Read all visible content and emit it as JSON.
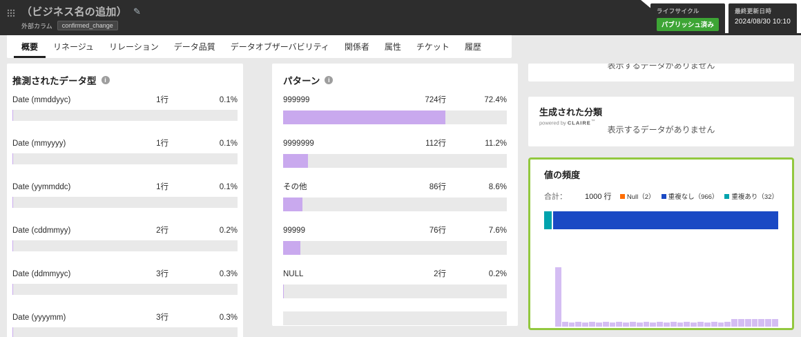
{
  "header": {
    "title": "（ビジネス名の追加）",
    "entity_type": "外部カラム",
    "entity_badge": "confirmed_change",
    "lifecycle": {
      "label": "ライフサイクル",
      "status": "パブリッシュ済み"
    },
    "last_updated": {
      "label": "最終更新日時",
      "value": "2024/08/30 10:10"
    }
  },
  "tabs": [
    {
      "key": "overview",
      "label": "概要",
      "active": true
    },
    {
      "key": "lineage",
      "label": "リネージュ",
      "active": false
    },
    {
      "key": "relation",
      "label": "リレーション",
      "active": false
    },
    {
      "key": "data-quality",
      "label": "データ品質",
      "active": false
    },
    {
      "key": "data-observability",
      "label": "データオブザーバビリティ",
      "active": false
    },
    {
      "key": "stakeholders",
      "label": "関係者",
      "active": false
    },
    {
      "key": "attributes",
      "label": "属性",
      "active": false
    },
    {
      "key": "tickets",
      "label": "チケット",
      "active": false
    },
    {
      "key": "history",
      "label": "履歴",
      "active": false
    }
  ],
  "panels": {
    "datatypes": {
      "title": "推測されたデータ型",
      "rows": [
        {
          "label": "Date (mmddyyc)",
          "count": "1行",
          "pct": "0.1%",
          "value": 0.1
        },
        {
          "label": "Date (mmyyyy)",
          "count": "1行",
          "pct": "0.1%",
          "value": 0.1
        },
        {
          "label": "Date (yymmddc)",
          "count": "1行",
          "pct": "0.1%",
          "value": 0.1
        },
        {
          "label": "Date (cddmmyy)",
          "count": "2行",
          "pct": "0.2%",
          "value": 0.2
        },
        {
          "label": "Date (ddmmyyc)",
          "count": "3行",
          "pct": "0.3%",
          "value": 0.3
        },
        {
          "label": "Date (yyyymm)",
          "count": "3行",
          "pct": "0.3%",
          "value": 0.3
        }
      ]
    },
    "patterns": {
      "title": "パターン",
      "rows": [
        {
          "label": "999999",
          "count": "724行",
          "pct": "72.4%",
          "value": 72.4
        },
        {
          "label": "9999999",
          "count": "112行",
          "pct": "11.2%",
          "value": 11.2
        },
        {
          "label": "その他",
          "count": "86行",
          "pct": "8.6%",
          "value": 8.6
        },
        {
          "label": "99999",
          "count": "76行",
          "pct": "7.6%",
          "value": 7.6
        },
        {
          "label": "NULL",
          "count": "2行",
          "pct": "0.2%",
          "value": 0.2
        }
      ]
    },
    "clipped_top": {
      "empty_text": "表示するデータがありません"
    },
    "classification": {
      "title": "生成された分類",
      "powered_by": "powered by",
      "brand": "CLAIRE",
      "empty_text": "表示するデータがありません"
    },
    "frequency": {
      "title": "値の頻度",
      "total_label": "合計：",
      "total_value": "1000 行",
      "total_rows": 1000,
      "legend": [
        {
          "label": "Null（2）",
          "color": "#ff6d00"
        },
        {
          "label": "重複なし（966）",
          "color": "#1a49c4"
        },
        {
          "label": "重複あり（32）",
          "color": "#00a3ad"
        }
      ],
      "segments": [
        {
          "name": "duplicates",
          "value": 32,
          "color": "#00a3ad"
        },
        {
          "name": "unique",
          "value": 966,
          "color": "#1a49c4"
        }
      ],
      "histogram": [
        100,
        8,
        7,
        8,
        7,
        8,
        7,
        8,
        7,
        8,
        7,
        8,
        7,
        8,
        7,
        8,
        7,
        8,
        7,
        8,
        7,
        8,
        7,
        8,
        7,
        8,
        13,
        13,
        13,
        13,
        13,
        13,
        13
      ]
    }
  },
  "colors": {
    "bar_fill": "#c9a9ee",
    "bar_track": "#e9e9e9",
    "histogram": "#d4bdf3",
    "highlight_border": "#92c83e",
    "status_green": "#3da535"
  },
  "chart_data": [
    {
      "type": "bar",
      "title": "推測されたデータ型",
      "orientation": "horizontal",
      "categories": [
        "Date (mmddyyc)",
        "Date (mmyyyy)",
        "Date (yymmddc)",
        "Date (cddmmyy)",
        "Date (ddmmyyc)",
        "Date (yyyymm)"
      ],
      "counts": [
        1,
        1,
        1,
        2,
        3,
        3
      ],
      "values": [
        0.1,
        0.1,
        0.1,
        0.2,
        0.3,
        0.3
      ],
      "unit": "%",
      "xlim": [
        0,
        100
      ]
    },
    {
      "type": "bar",
      "title": "パターン",
      "orientation": "horizontal",
      "categories": [
        "999999",
        "9999999",
        "その他",
        "99999",
        "NULL"
      ],
      "counts": [
        724,
        112,
        86,
        76,
        2
      ],
      "values": [
        72.4,
        11.2,
        8.6,
        7.6,
        0.2
      ],
      "unit": "%",
      "xlim": [
        0,
        100
      ]
    },
    {
      "type": "bar",
      "title": "値の頻度",
      "total_rows": 1000,
      "series": [
        {
          "name": "Null",
          "value": 2
        },
        {
          "name": "重複なし",
          "value": 966
        },
        {
          "name": "重複あり",
          "value": 32
        }
      ],
      "histogram_relative_heights": [
        100,
        8,
        7,
        8,
        7,
        8,
        7,
        8,
        7,
        8,
        7,
        8,
        7,
        8,
        7,
        8,
        7,
        8,
        7,
        8,
        7,
        8,
        7,
        8,
        7,
        8,
        13,
        13,
        13,
        13,
        13,
        13,
        13
      ]
    }
  ]
}
